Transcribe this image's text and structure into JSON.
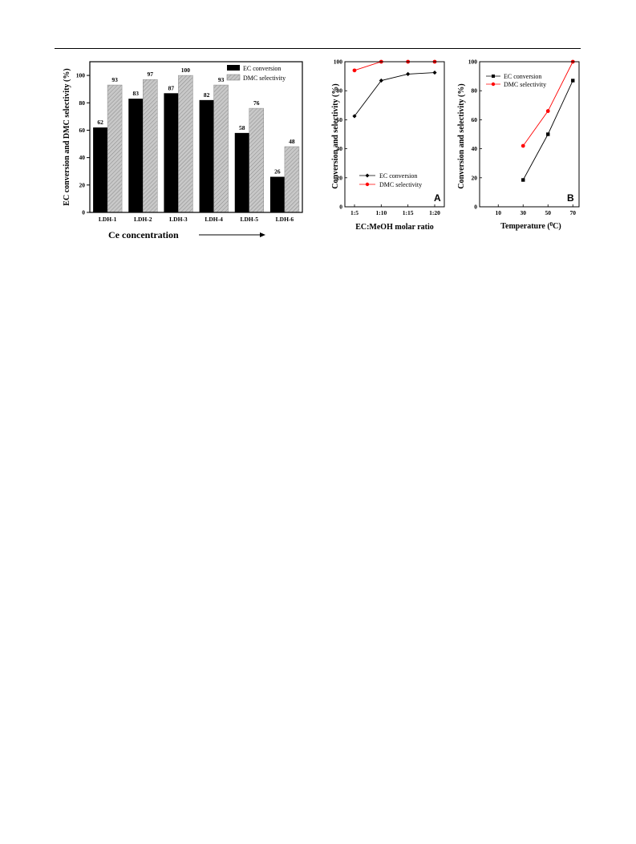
{
  "chart_data": [
    {
      "type": "bar",
      "categories": [
        "LDH-1",
        "LDH-2",
        "LDH-3",
        "LDH-4",
        "LDH-5",
        "LDH-6"
      ],
      "series": [
        {
          "name": "EC conversion",
          "values": [
            62,
            83,
            87,
            82,
            58,
            26
          ],
          "color": "#000000"
        },
        {
          "name": "DMC selectivity",
          "values": [
            93,
            97,
            100,
            93,
            76,
            48
          ],
          "color": "#bdbdbd"
        }
      ],
      "xlabel": "Ce concentration",
      "ylabel": "EC conversion and DMC selectivity (%)",
      "ylim": [
        0,
        110
      ],
      "yticks": [
        0,
        20,
        40,
        60,
        80,
        100
      ],
      "legend_position": "top-right",
      "grid": false
    },
    {
      "type": "line",
      "categories": [
        "1:5",
        "1:10",
        "1:15",
        "1:20"
      ],
      "series": [
        {
          "name": "EC conversion",
          "values": [
            62.5,
            87,
            91.5,
            92.5
          ],
          "color": "#000000",
          "marker": "diamond"
        },
        {
          "name": "DMC selectivity",
          "values": [
            94,
            100,
            100,
            100
          ],
          "color": "#ff0000",
          "marker": "circle"
        }
      ],
      "xlabel": "EC:MeOH molar ratio",
      "ylabel": "Conversion and selectivity (%)",
      "ylim": [
        0,
        100
      ],
      "yticks": [
        0,
        20,
        40,
        60,
        80,
        100
      ],
      "panel_label": "A",
      "legend_position": "bottom-left",
      "grid": false
    },
    {
      "type": "line",
      "x": [
        30,
        50,
        70
      ],
      "xticks": [
        10,
        30,
        50,
        70
      ],
      "xlim": [
        -5,
        75
      ],
      "series": [
        {
          "name": "EC conversion",
          "values": [
            18.5,
            50,
            87
          ],
          "color": "#000000",
          "marker": "square"
        },
        {
          "name": "DMC selectivity",
          "values": [
            42,
            66,
            100
          ],
          "color": "#ff0000",
          "marker": "circle"
        }
      ],
      "xlabel_main": "Temperature (",
      "xlabel_sup": "0",
      "xlabel_end": "C)",
      "ylabel": "Conversion and selectivity (%)",
      "ylim": [
        0,
        100
      ],
      "yticks": [
        0,
        20,
        40,
        60,
        80,
        100
      ],
      "panel_label": "B",
      "legend_position": "top-left",
      "grid": false
    }
  ]
}
